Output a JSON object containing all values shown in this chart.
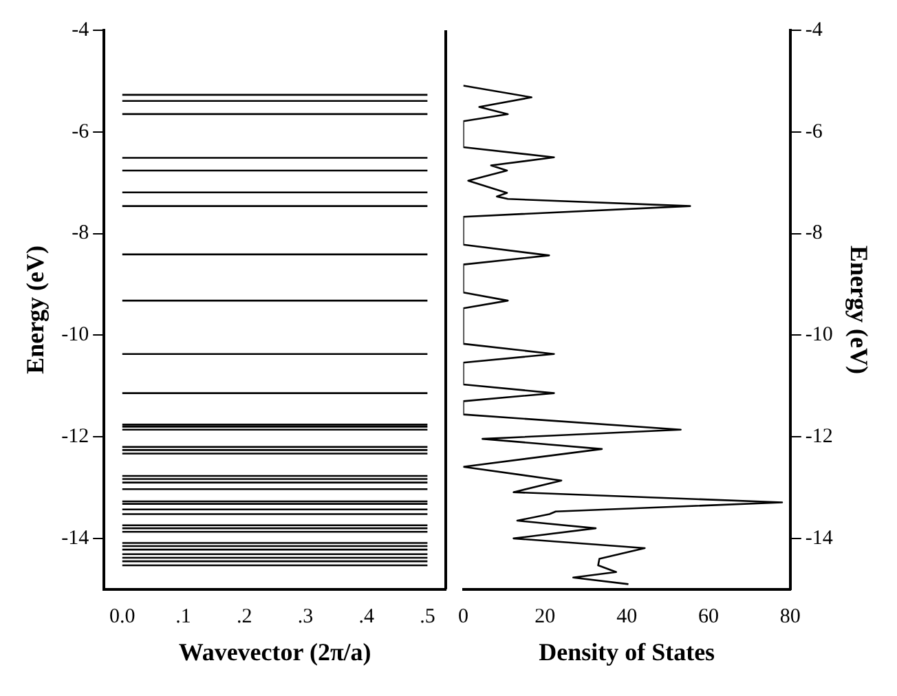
{
  "chart_data": [
    {
      "type": "line",
      "xlabel": "Wavevector (2π/a)",
      "ylabel": "Energy (eV)",
      "xlim": [
        -0.03,
        0.53
      ],
      "xticks": [
        {
          "value": 0,
          "label": "0.0"
        },
        {
          "value": 0.1,
          "label": ".1"
        },
        {
          "value": 0.2,
          "label": ".2"
        },
        {
          "value": 0.3,
          "label": ".3"
        },
        {
          "value": 0.4,
          "label": ".4"
        },
        {
          "value": 0.5,
          "label": ".5"
        }
      ],
      "ylim": [
        -15,
        -4
      ],
      "yticks": [
        -4,
        -6,
        -8,
        -10,
        -12,
        -14
      ],
      "grid": false,
      "legend": false,
      "marker": "none",
      "line_style": "solid",
      "series": [
        {
          "color": "#000000",
          "x": [
            0,
            0.5
          ],
          "values": [
            -5.27,
            -5.27
          ]
        },
        {
          "color": "#000000",
          "x": [
            0,
            0.5
          ],
          "values": [
            -5.39,
            -5.39
          ]
        },
        {
          "color": "#000000",
          "x": [
            0,
            0.5
          ],
          "values": [
            -5.65,
            -5.65
          ]
        },
        {
          "color": "#000000",
          "x": [
            0,
            0.5
          ],
          "values": [
            -6.51,
            -6.51
          ]
        },
        {
          "color": "#000000",
          "x": [
            0,
            0.5
          ],
          "values": [
            -6.76,
            -6.76
          ]
        },
        {
          "color": "#000000",
          "x": [
            0,
            0.5
          ],
          "values": [
            -7.19,
            -7.19
          ]
        },
        {
          "color": "#000000",
          "x": [
            0,
            0.5
          ],
          "values": [
            -7.46,
            -7.46
          ]
        },
        {
          "color": "#000000",
          "x": [
            0,
            0.5
          ],
          "values": [
            -8.41,
            -8.41
          ]
        },
        {
          "color": "#000000",
          "x": [
            0,
            0.5
          ],
          "values": [
            -9.32,
            -9.32
          ]
        },
        {
          "color": "#000000",
          "x": [
            0,
            0.5
          ],
          "values": [
            -10.37,
            -10.37
          ]
        },
        {
          "color": "#000000",
          "x": [
            0,
            0.5
          ],
          "values": [
            -11.14,
            -11.14
          ]
        },
        {
          "color": "#000000",
          "x": [
            0,
            0.5
          ],
          "values": [
            -11.76,
            -11.76
          ]
        },
        {
          "color": "#000000",
          "x": [
            0,
            0.5
          ],
          "values": [
            -11.8,
            -11.8
          ]
        },
        {
          "color": "#000000",
          "x": [
            0,
            0.5
          ],
          "values": [
            -11.86,
            -11.86
          ]
        },
        {
          "color": "#000000",
          "x": [
            0,
            0.5
          ],
          "values": [
            -12.2,
            -12.2
          ]
        },
        {
          "color": "#000000",
          "x": [
            0,
            0.5
          ],
          "values": [
            -12.26,
            -12.26
          ]
        },
        {
          "color": "#000000",
          "x": [
            0,
            0.5
          ],
          "values": [
            -12.33,
            -12.33
          ]
        },
        {
          "color": "#000000",
          "x": [
            0,
            0.5
          ],
          "values": [
            -12.77,
            -12.77
          ]
        },
        {
          "color": "#000000",
          "x": [
            0,
            0.5
          ],
          "values": [
            -12.83,
            -12.83
          ]
        },
        {
          "color": "#000000",
          "x": [
            0,
            0.5
          ],
          "values": [
            -12.9,
            -12.9
          ]
        },
        {
          "color": "#000000",
          "x": [
            0,
            0.5
          ],
          "values": [
            -13.03,
            -13.03
          ]
        },
        {
          "color": "#000000",
          "x": [
            0,
            0.5
          ],
          "values": [
            -13.27,
            -13.27
          ]
        },
        {
          "color": "#000000",
          "x": [
            0,
            0.5
          ],
          "values": [
            -13.32,
            -13.32
          ]
        },
        {
          "color": "#000000",
          "x": [
            0,
            0.5
          ],
          "values": [
            -13.43,
            -13.43
          ]
        },
        {
          "color": "#000000",
          "x": [
            0,
            0.5
          ],
          "values": [
            -13.52,
            -13.52
          ]
        },
        {
          "color": "#000000",
          "x": [
            0,
            0.5
          ],
          "values": [
            -13.74,
            -13.74
          ]
        },
        {
          "color": "#000000",
          "x": [
            0,
            0.5
          ],
          "values": [
            -13.8,
            -13.8
          ]
        },
        {
          "color": "#000000",
          "x": [
            0,
            0.5
          ],
          "values": [
            -13.87,
            -13.87
          ]
        },
        {
          "color": "#000000",
          "x": [
            0,
            0.5
          ],
          "values": [
            -14.09,
            -14.09
          ]
        },
        {
          "color": "#000000",
          "x": [
            0,
            0.5
          ],
          "values": [
            -14.15,
            -14.15
          ]
        },
        {
          "color": "#000000",
          "x": [
            0,
            0.5
          ],
          "values": [
            -14.22,
            -14.22
          ]
        },
        {
          "color": "#000000",
          "x": [
            0,
            0.5
          ],
          "values": [
            -14.31,
            -14.31
          ]
        },
        {
          "color": "#000000",
          "x": [
            0,
            0.5
          ],
          "values": [
            -14.38,
            -14.38
          ]
        },
        {
          "color": "#000000",
          "x": [
            0,
            0.5
          ],
          "values": [
            -14.45,
            -14.45
          ]
        },
        {
          "color": "#000000",
          "x": [
            0,
            0.5
          ],
          "values": [
            -14.53,
            -14.53
          ]
        }
      ]
    },
    {
      "type": "line",
      "xlabel": "Density of States",
      "ylabel": "Energy (eV)",
      "xlim": [
        0,
        80
      ],
      "xticks": [
        0,
        20,
        40,
        60,
        80
      ],
      "ylim": [
        -15,
        -4
      ],
      "yticks": [
        -4,
        -6,
        -8,
        -10,
        -12,
        -14
      ],
      "grid": false,
      "legend": false,
      "marker": "none",
      "line_style": "solid",
      "series": [
        {
          "color": "#000000",
          "x": [
            0,
            16.7,
            3.9,
            10.9,
            0,
            0,
            22.2,
            6.8,
            10.7,
            1.2,
            10.7,
            8.2,
            10.9,
            55.5,
            0,
            0,
            21,
            0,
            0,
            10.9,
            0,
            0,
            22.2,
            0,
            0,
            22.2,
            0,
            0,
            53.2,
            4.7,
            33.9,
            0,
            24,
            12.3,
            78,
            22.6,
            21.1,
            13.2,
            32.4,
            12.3,
            44.4,
            33.3,
            33,
            37.4,
            26.9,
            40.4
          ],
          "values": [
            -5.09,
            -5.32,
            -5.51,
            -5.65,
            -5.79,
            -6.3,
            -6.5,
            -6.66,
            -6.76,
            -6.96,
            -7.2,
            -7.27,
            -7.32,
            -7.46,
            -7.67,
            -8.22,
            -8.43,
            -8.61,
            -9.16,
            -9.32,
            -9.47,
            -10.17,
            -10.37,
            -10.54,
            -10.97,
            -11.14,
            -11.3,
            -11.56,
            -11.86,
            -12.04,
            -12.24,
            -12.59,
            -12.86,
            -13.09,
            -13.29,
            -13.47,
            -13.52,
            -13.65,
            -13.8,
            -14,
            -14.19,
            -14.4,
            -14.53,
            -14.66,
            -14.77,
            -14.9
          ]
        }
      ]
    }
  ]
}
